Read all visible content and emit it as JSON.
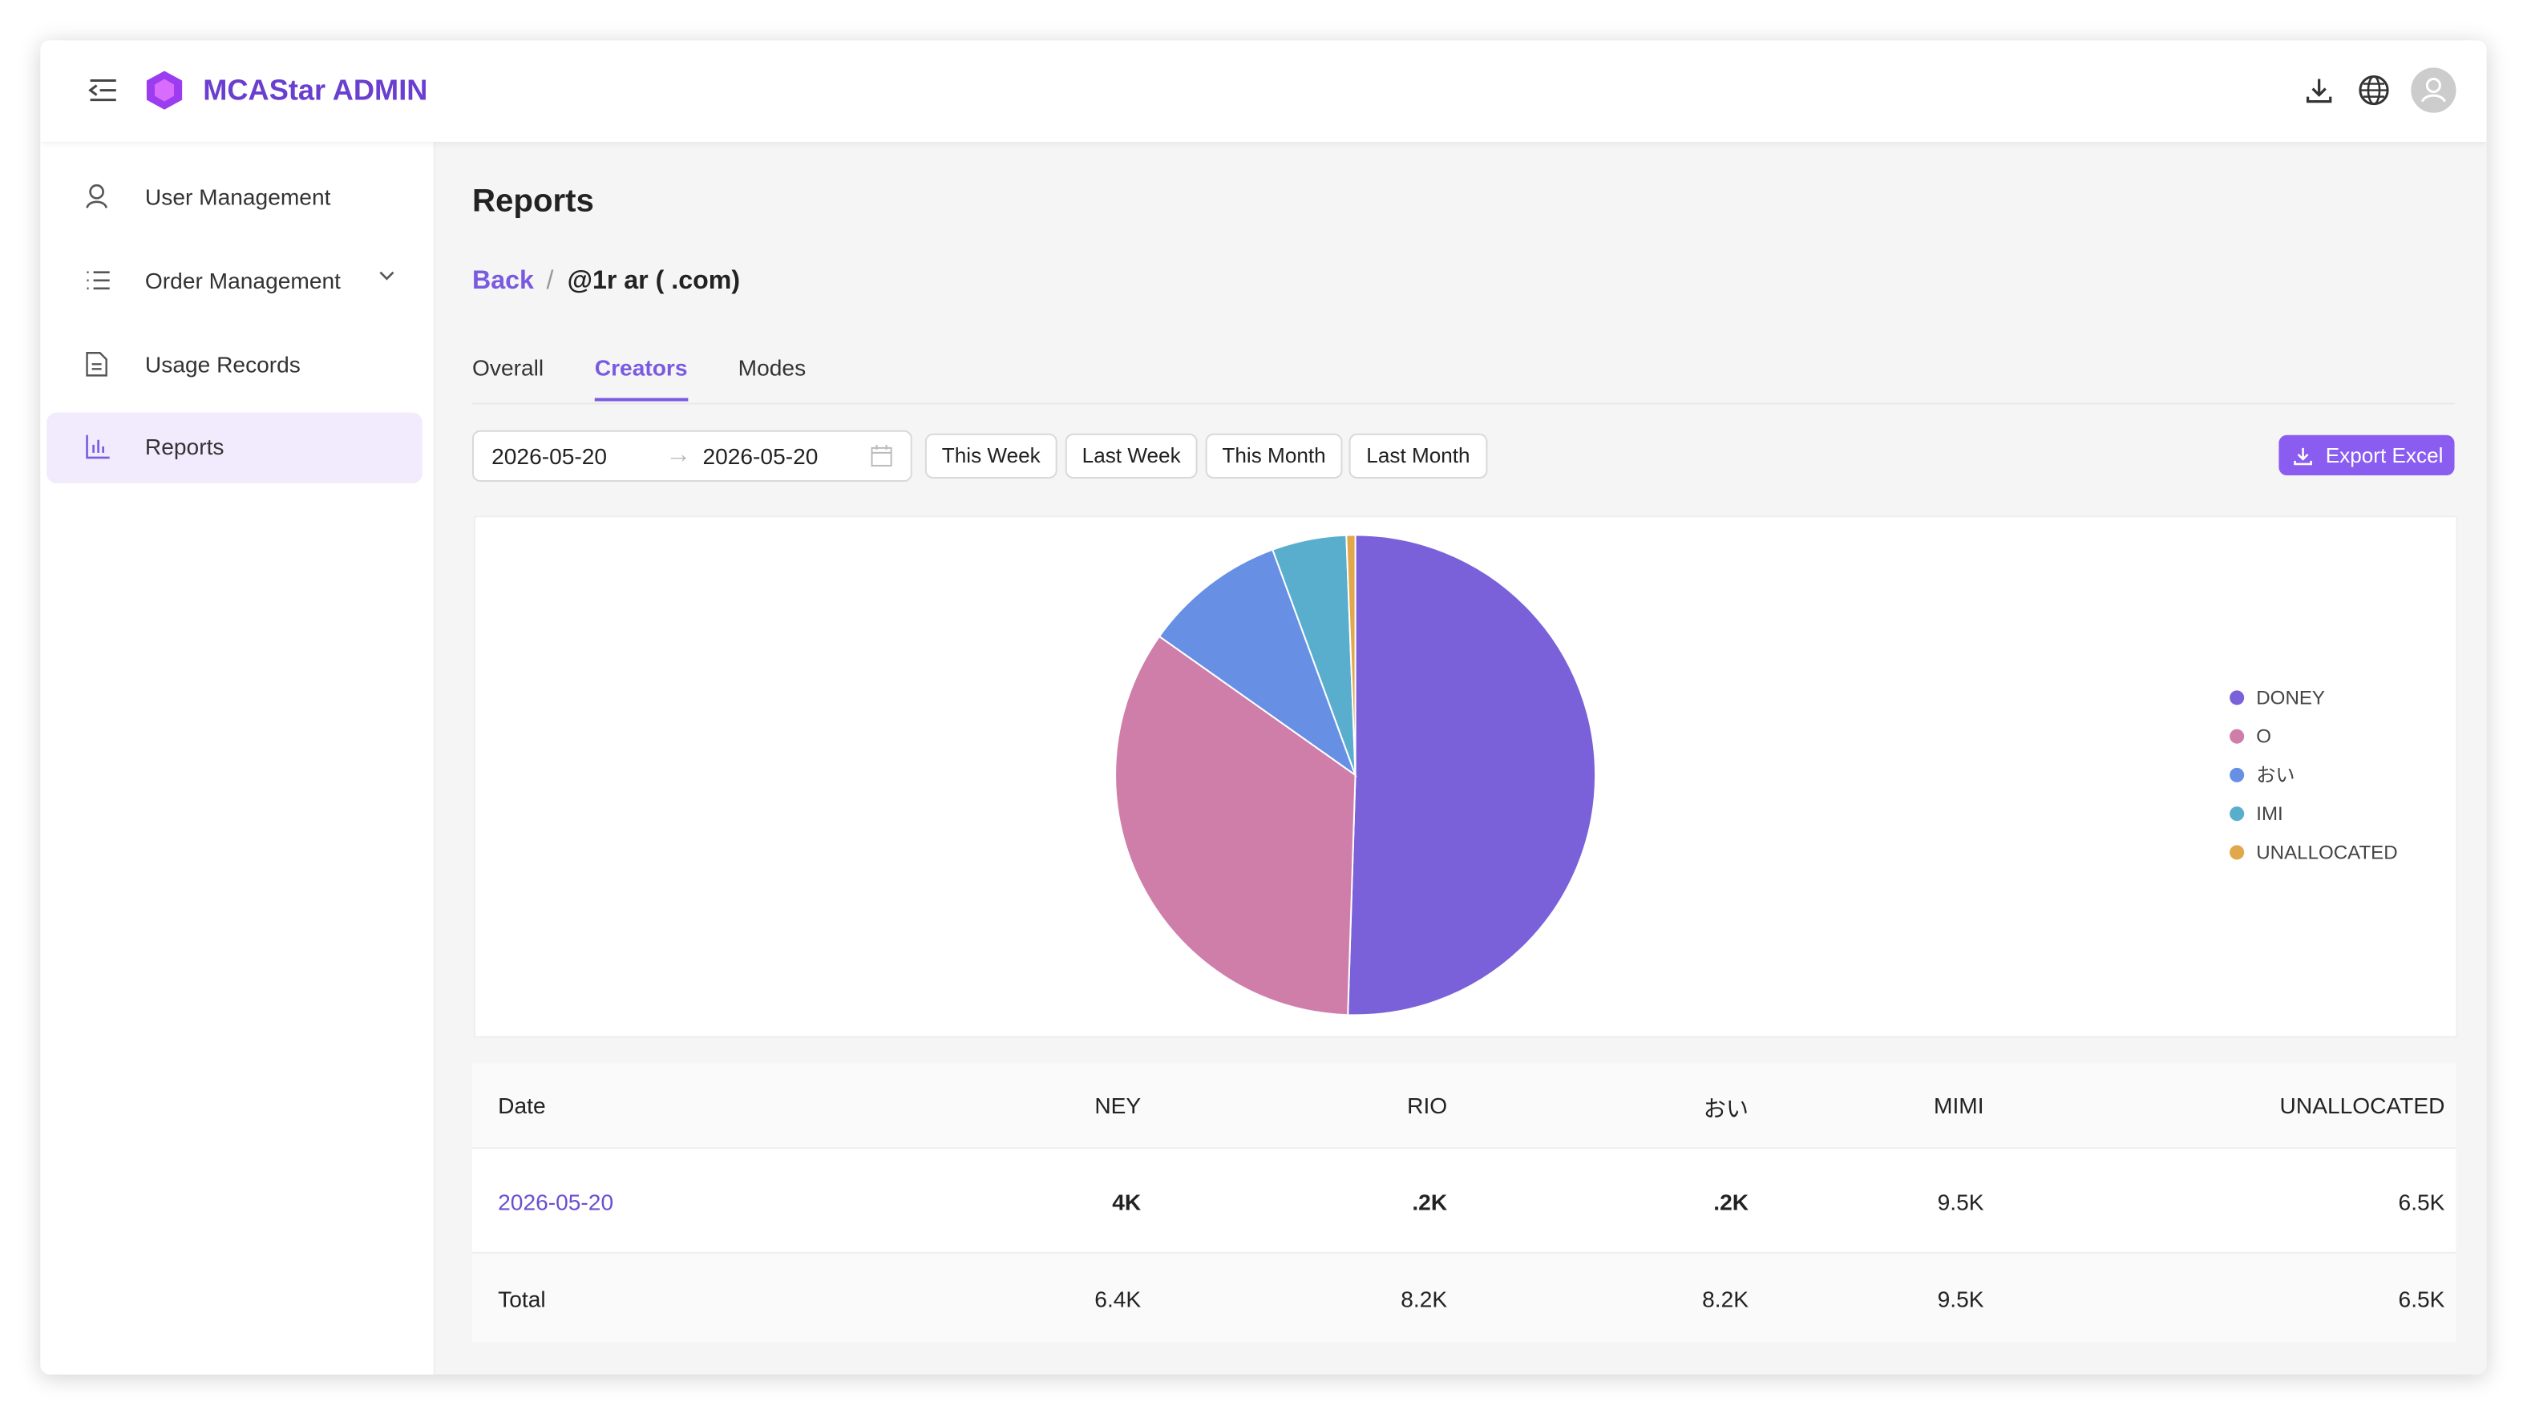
{
  "header": {
    "brand": "MCAStar ADMIN"
  },
  "sidebar": {
    "items": [
      "User Management",
      "Order Management",
      "Usage Records",
      "Reports"
    ]
  },
  "page": {
    "title": "Reports",
    "back": "Back",
    "account": "@1r  ar (  .com)",
    "tabs": [
      "Overall",
      "Creators",
      "Modes"
    ],
    "date_start": "2026-05-20",
    "date_end": "2026-05-20",
    "ranges": [
      "This Week",
      "Last Week",
      "This Month",
      "Last Month"
    ],
    "export": "Export Excel"
  },
  "chart_data": {
    "type": "pie",
    "categories": [
      "DONEY",
      "O",
      "おい",
      "IMI",
      "UNALLOCATED"
    ],
    "values": [
      50.5,
      34.3,
      9.6,
      5,
      0.6
    ],
    "colors": [
      "#7b61d9",
      "#cf7eaa",
      "#6790e4",
      "#5aaecd",
      "#e0a84a"
    ]
  },
  "table": {
    "header": [
      "Date",
      "NEY",
      "RIO",
      "おい",
      "MIMI",
      "UNALLOCATED"
    ],
    "rows": [
      [
        "2026-05-20",
        "4K",
        ".2K",
        ".2K",
        "9.5K",
        "6.5K"
      ],
      [
        "Total",
        "6.4K",
        "8.2K",
        "8.2K",
        "9.5K",
        "6.5K"
      ]
    ]
  }
}
